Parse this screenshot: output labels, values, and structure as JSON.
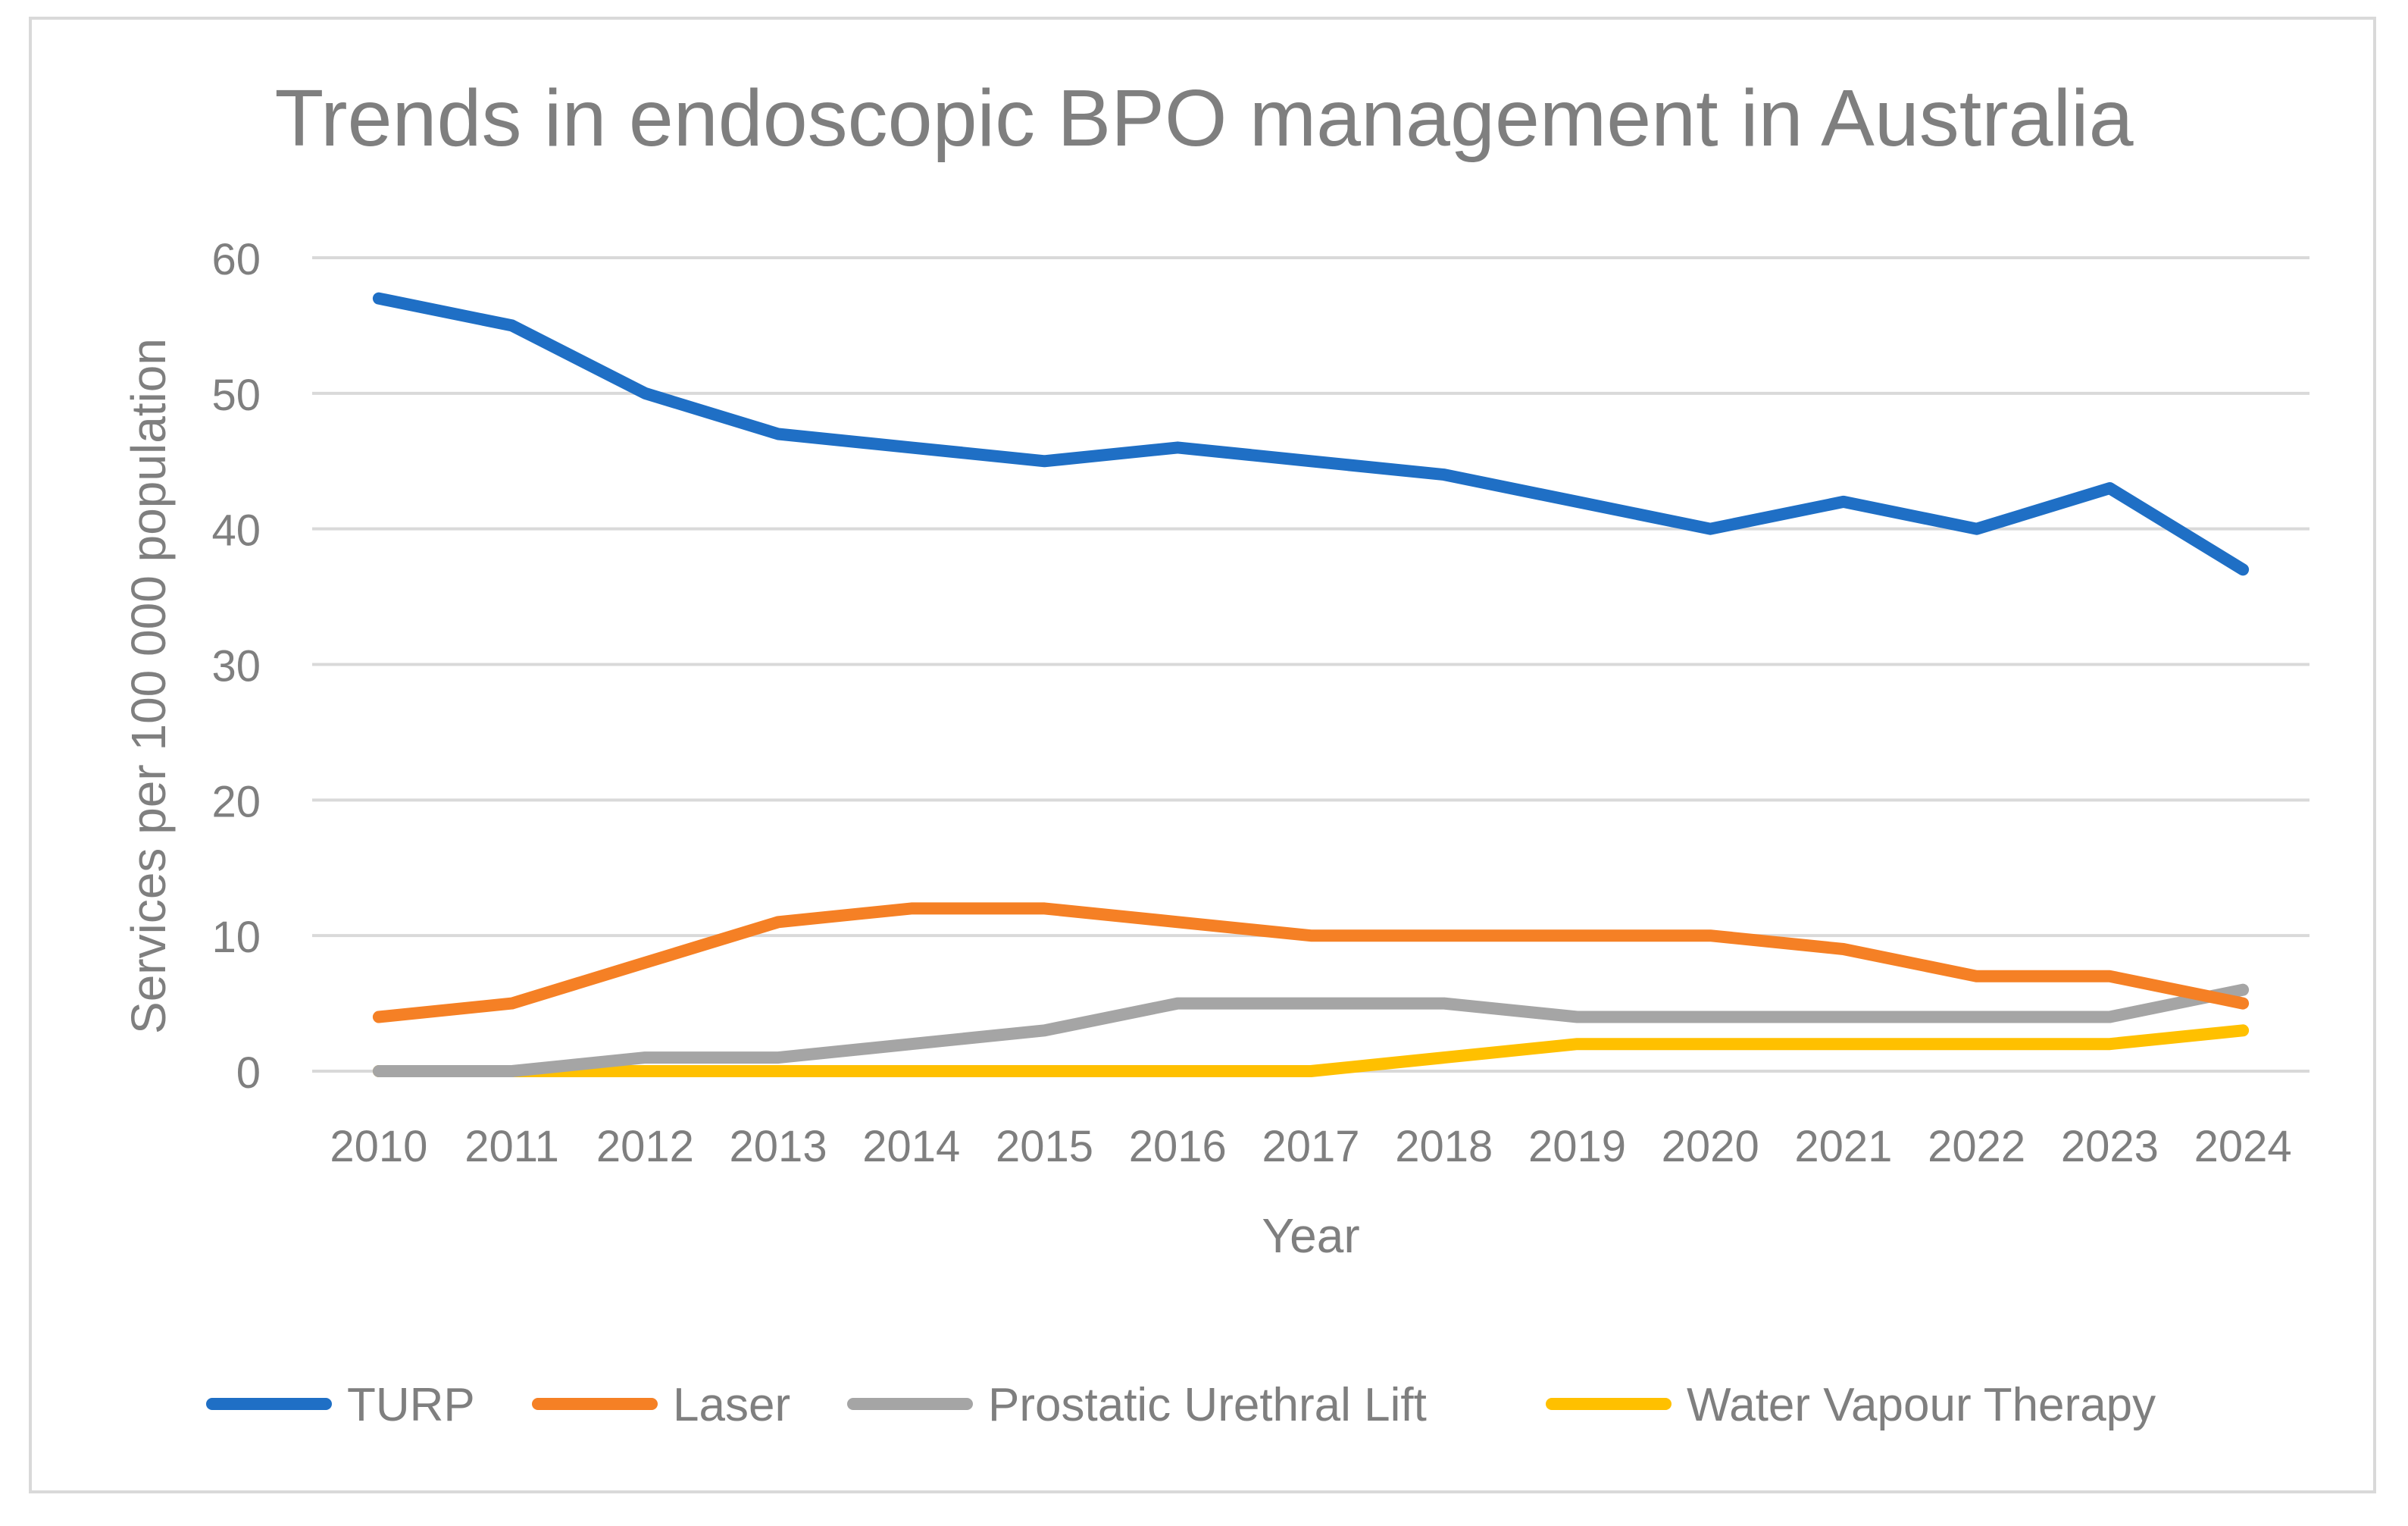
{
  "chart_data": {
    "type": "line",
    "title": "Trends in endoscopic BPO management in Australia",
    "xlabel": "Year",
    "ylabel": "Services per 100 000 population",
    "ylim": [
      0,
      60
    ],
    "yticks": [
      "0",
      "10",
      "20",
      "30",
      "40",
      "50",
      "60"
    ],
    "grid": true,
    "legend_position": "bottom",
    "categories": [
      "2010",
      "2011",
      "2012",
      "2013",
      "2014",
      "2015",
      "2016",
      "2017",
      "2018",
      "2019",
      "2020",
      "2021",
      "2022",
      "2023",
      "2024"
    ],
    "series": [
      {
        "name": "TURP",
        "color": "#1f6fc5",
        "values": [
          57,
          55,
          50,
          47,
          46,
          45,
          46,
          45,
          44,
          42,
          40,
          42,
          40,
          43,
          37
        ]
      },
      {
        "name": "Laser",
        "color": "#f58025",
        "values": [
          4,
          5,
          8,
          11,
          12,
          12,
          11,
          10,
          10,
          10,
          10,
          9,
          7,
          7,
          5
        ]
      },
      {
        "name": "Prostatic Urethral Lift",
        "color": "#a5a5a5",
        "values": [
          0,
          0,
          1,
          1,
          2,
          3,
          5,
          5,
          5,
          4,
          4,
          4,
          4,
          4,
          6
        ]
      },
      {
        "name": "Water Vapour Therapy",
        "color": "#ffc000",
        "values": [
          0,
          0,
          0,
          0,
          0,
          0,
          0,
          0,
          1,
          2,
          2,
          2,
          2,
          2,
          3
        ]
      }
    ]
  }
}
